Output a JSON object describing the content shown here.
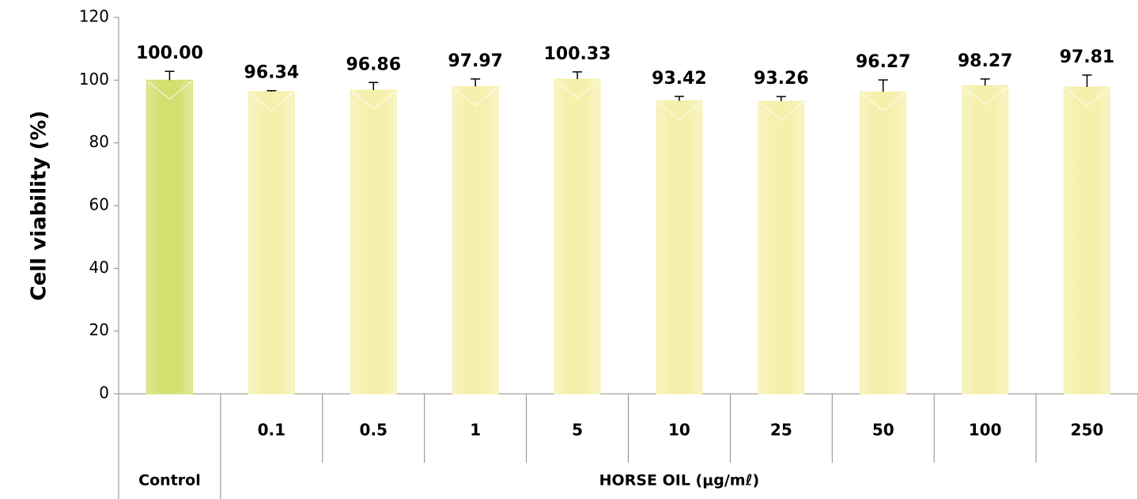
{
  "chart_data": {
    "type": "bar",
    "ylabel": "Cell viability (%)",
    "categories": [
      null,
      "0.1",
      "0.5",
      "1",
      "5",
      "10",
      "25",
      "50",
      "100",
      "250"
    ],
    "groups": [
      {
        "label": "Control",
        "span": 1
      },
      {
        "label": "HORSE OIL (μg/mℓ)",
        "span": 9
      }
    ],
    "values": [
      100,
      96.34,
      96.86,
      97.97,
      100.33,
      93.42,
      93.26,
      96.27,
      98.27,
      97.81
    ],
    "value_labels": [
      "100.00",
      "96.34",
      "96.86",
      "97.97",
      "100.33",
      "93.42",
      "93.26",
      "96.27",
      "98.27",
      "97.81"
    ],
    "errors": [
      2.8,
      0.3,
      2.4,
      2.4,
      2.3,
      1.4,
      1.5,
      3.8,
      2.1,
      3.8
    ],
    "colors": [
      "#d3e070",
      "#f6f0ad",
      "#f6f0ad",
      "#f6f0ad",
      "#f6f0ad",
      "#f6f0ad",
      "#f6f0ad",
      "#f6f0ad",
      "#f6f0ad",
      "#f6f0ad"
    ],
    "ylim": [
      0,
      120
    ],
    "yticks": [
      0,
      20,
      40,
      60,
      80,
      100,
      120
    ]
  }
}
